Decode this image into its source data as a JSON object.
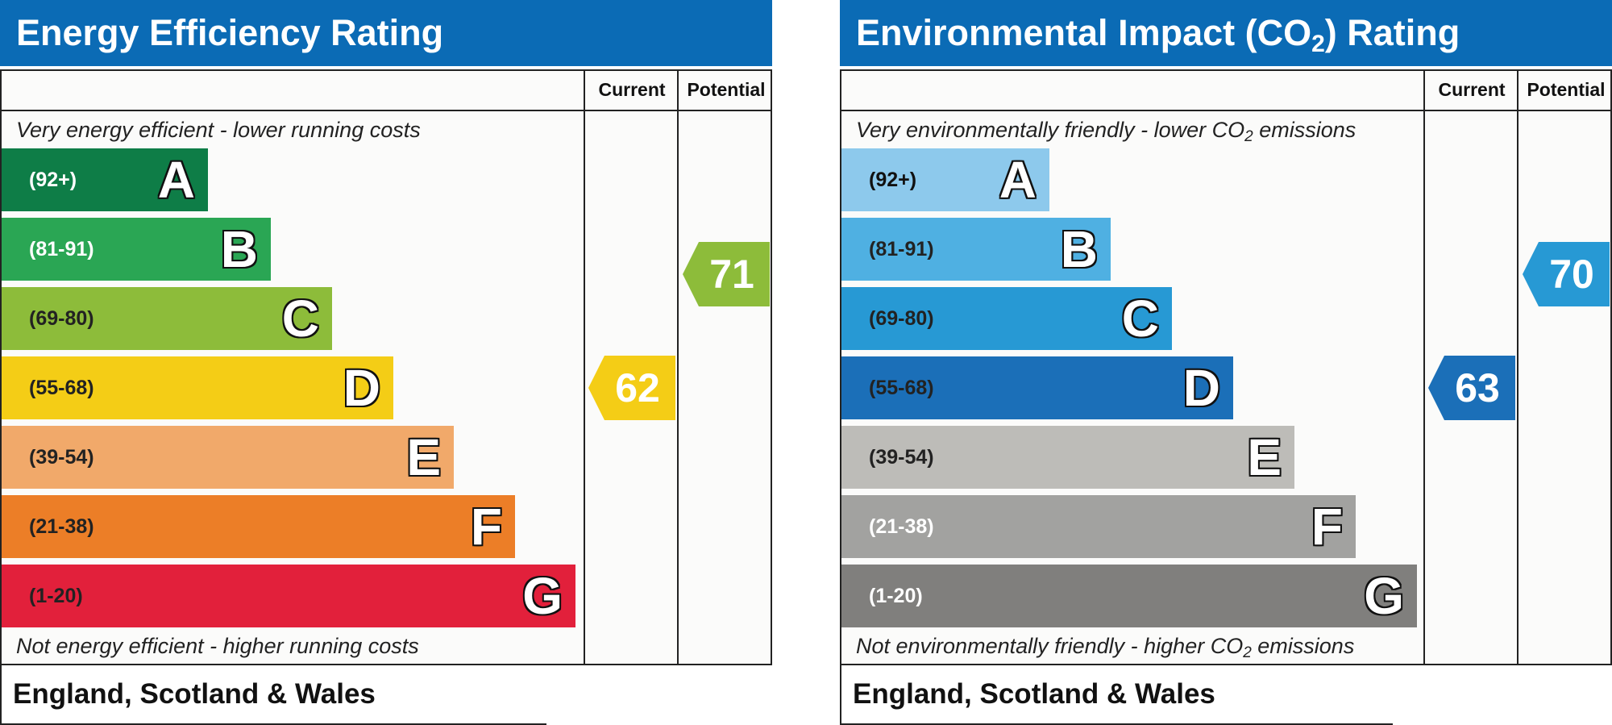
{
  "chart_data": [
    {
      "type": "bar",
      "title": "Energy Efficiency Rating",
      "columns": [
        "Current",
        "Potential"
      ],
      "top_caption": "Very energy efficient - lower running costs",
      "bottom_caption": "Not energy efficient - higher running costs",
      "footer": "England, Scotland & Wales",
      "bands": [
        {
          "letter": "A",
          "range": "(92+)",
          "color": "#0e7d47",
          "text_color": "#ffffff"
        },
        {
          "letter": "B",
          "range": "(81-91)",
          "color": "#2aa654",
          "text_color": "#ffffff"
        },
        {
          "letter": "C",
          "range": "(69-80)",
          "color": "#8dbc3a",
          "text_color": "#222222"
        },
        {
          "letter": "D",
          "range": "(55-68)",
          "color": "#f4cd16",
          "text_color": "#222222"
        },
        {
          "letter": "E",
          "range": "(39-54)",
          "color": "#f1a96a",
          "text_color": "#222222"
        },
        {
          "letter": "F",
          "range": "(21-38)",
          "color": "#ec7e27",
          "text_color": "#222222"
        },
        {
          "letter": "G",
          "range": "(1-20)",
          "color": "#e2203b",
          "text_color": "#222222"
        }
      ],
      "current": {
        "value": 62,
        "color": "#f4cd16"
      },
      "potential": {
        "value": 71,
        "color": "#8dbc3a"
      }
    },
    {
      "type": "bar",
      "title": "Environmental Impact (CO₂) Rating",
      "columns": [
        "Current",
        "Potential"
      ],
      "top_caption": "Very environmentally friendly - lower CO₂ emissions",
      "bottom_caption": "Not environmentally friendly - higher CO₂ emissions",
      "footer": "England, Scotland & Wales",
      "bands": [
        {
          "letter": "A",
          "range": "(92+)",
          "color": "#8dc9ec",
          "text_color": "#111111"
        },
        {
          "letter": "B",
          "range": "(81-91)",
          "color": "#4fb0e2",
          "text_color": "#222222"
        },
        {
          "letter": "C",
          "range": "(69-80)",
          "color": "#2799d4",
          "text_color": "#222222"
        },
        {
          "letter": "D",
          "range": "(55-68)",
          "color": "#1b6fb8",
          "text_color": "#222222"
        },
        {
          "letter": "E",
          "range": "(39-54)",
          "color": "#bdbcb8",
          "text_color": "#222222"
        },
        {
          "letter": "F",
          "range": "(21-38)",
          "color": "#a2a2a0",
          "text_color": "#ffffff"
        },
        {
          "letter": "G",
          "range": "(1-20)",
          "color": "#807f7d",
          "text_color": "#ffffff"
        }
      ],
      "current": {
        "value": 63,
        "color": "#1b6fb8"
      },
      "potential": {
        "value": 70,
        "color": "#2799d4"
      }
    }
  ]
}
